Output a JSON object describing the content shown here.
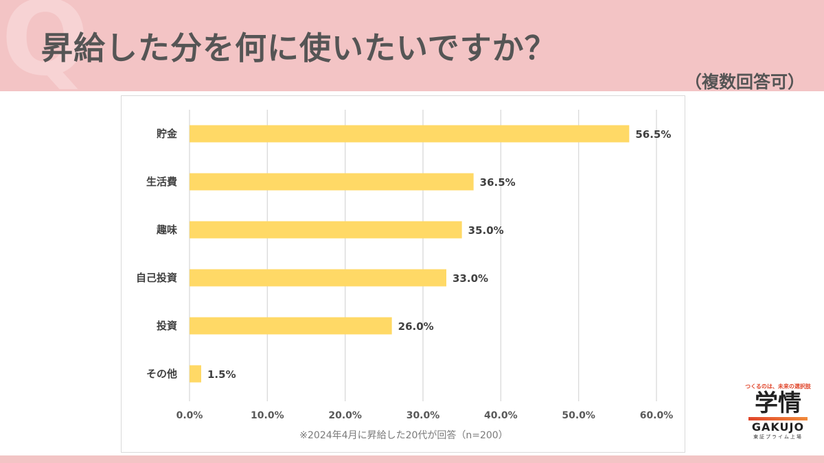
{
  "header": {
    "q_mark": "Q",
    "title": "昇給した分を何に使いたいですか？",
    "subtitle": "（複数回答可）"
  },
  "chart_data": {
    "type": "bar",
    "orientation": "horizontal",
    "categories": [
      "貯金",
      "生活費",
      "趣味",
      "自己投資",
      "投資",
      "その他"
    ],
    "values": [
      56.5,
      36.5,
      35.0,
      33.0,
      26.0,
      1.5
    ],
    "value_labels": [
      "56.5%",
      "36.5%",
      "35.0%",
      "33.0%",
      "26.0%",
      "1.5%"
    ],
    "xlim": [
      0,
      60
    ],
    "xticks": [
      0,
      10,
      20,
      30,
      40,
      50,
      60
    ],
    "xtick_labels": [
      "0.0%",
      "10.0%",
      "20.0%",
      "30.0%",
      "40.0%",
      "50.0%",
      "60.0%"
    ],
    "grid": true,
    "bar_color": "#ffd966",
    "grid_color": "#d9d9d9",
    "footnote": "※2024年4月に昇給した20代が回答（n=200）"
  },
  "logo": {
    "tagline": "つくるのは、未来の選択肢",
    "mark": "学情",
    "name": "GAKUJO",
    "market": "東証プライム上場"
  }
}
